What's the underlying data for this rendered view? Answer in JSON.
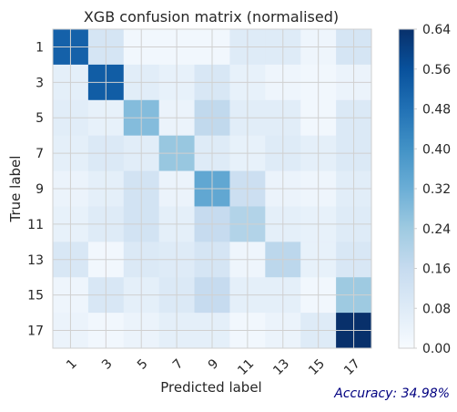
{
  "chart_data": {
    "type": "heatmap",
    "title": "XGB confusion matrix (normalised)",
    "xlabel": "Predicted label",
    "ylabel": "True label",
    "x_ticks": [
      "1",
      "3",
      "5",
      "7",
      "9",
      "11",
      "13",
      "15",
      "17"
    ],
    "y_ticks": [
      "1",
      "3",
      "5",
      "7",
      "9",
      "11",
      "13",
      "15",
      "17"
    ],
    "matrix": [
      [
        0.52,
        0.11,
        0.02,
        0.02,
        0.02,
        0.08,
        0.08,
        0.03,
        0.11
      ],
      [
        0.06,
        0.53,
        0.07,
        0.05,
        0.1,
        0.05,
        0.03,
        0.02,
        0.04
      ],
      [
        0.07,
        0.05,
        0.28,
        0.04,
        0.17,
        0.07,
        0.07,
        0.02,
        0.09
      ],
      [
        0.06,
        0.09,
        0.07,
        0.25,
        0.08,
        0.05,
        0.08,
        0.06,
        0.09
      ],
      [
        0.04,
        0.06,
        0.12,
        0.04,
        0.34,
        0.14,
        0.04,
        0.03,
        0.07
      ],
      [
        0.05,
        0.08,
        0.12,
        0.06,
        0.16,
        0.2,
        0.06,
        0.05,
        0.08
      ],
      [
        0.1,
        0.02,
        0.09,
        0.08,
        0.11,
        0.03,
        0.18,
        0.05,
        0.1
      ],
      [
        0.03,
        0.1,
        0.06,
        0.09,
        0.16,
        0.06,
        0.06,
        0.02,
        0.24
      ],
      [
        0.04,
        0.02,
        0.04,
        0.06,
        0.06,
        0.02,
        0.04,
        0.08,
        0.64
      ]
    ],
    "colorbar": {
      "range": [
        0.0,
        0.64
      ],
      "ticks": [
        "0.00",
        "0.08",
        "0.16",
        "0.24",
        "0.32",
        "0.40",
        "0.48",
        "0.56",
        "0.64"
      ],
      "colormap": [
        "#f7fbff",
        "#deebf7",
        "#c6dbef",
        "#9ecae1",
        "#6baed6",
        "#4292c6",
        "#2171b5",
        "#08519c",
        "#08306b"
      ]
    },
    "grid": true
  },
  "annotation": {
    "accuracy_text": "Accuracy: 34.98%"
  }
}
